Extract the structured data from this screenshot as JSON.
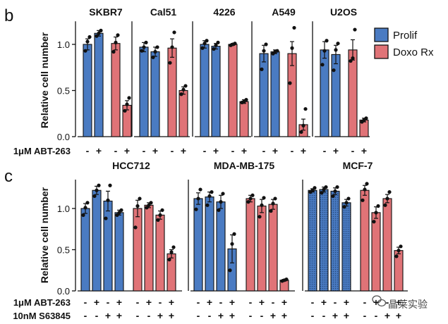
{
  "figure": {
    "colors": {
      "prolif": "#4a7bc2",
      "doxo": "#e07377",
      "err": "#111111",
      "dot": "#111111"
    },
    "watermark": "晶莱实验",
    "legend": [
      {
        "label": "Prolif",
        "color": "#4a7bc2"
      },
      {
        "label": "Doxo Rx",
        "color": "#e07377"
      }
    ]
  },
  "chart_data": [
    {
      "type": "bar",
      "panel": "b",
      "ylabel": "Relative cell number",
      "ylim": [
        0,
        1.25
      ],
      "yticks": [
        "0.0",
        "0.5",
        "1.0"
      ],
      "treatment_rows": [
        {
          "label": "1μM ABT-263",
          "signs": [
            "-",
            "+",
            "-",
            "+"
          ]
        }
      ],
      "groups": [
        {
          "title": "SKBR7",
          "bars": [
            {
              "condition": "Prolif",
              "abt": "-",
              "value": 1.0,
              "err": 0.06,
              "points": [
                0.93,
                1.03,
                1.08
              ]
            },
            {
              "condition": "Prolif",
              "abt": "+",
              "value": 1.12,
              "err": 0.03,
              "points": [
                1.09,
                1.12,
                1.15
              ]
            },
            {
              "condition": "Doxo Rx",
              "abt": "-",
              "value": 1.01,
              "err": 0.07,
              "points": [
                0.92,
                1.02,
                1.1
              ]
            },
            {
              "condition": "Doxo Rx",
              "abt": "+",
              "value": 0.34,
              "err": 0.05,
              "points": [
                0.28,
                0.35,
                0.42
              ]
            }
          ]
        },
        {
          "title": "Cal51",
          "bars": [
            {
              "condition": "Prolif",
              "abt": "-",
              "value": 0.97,
              "err": 0.05,
              "points": [
                0.93,
                0.97,
                1.02
              ]
            },
            {
              "condition": "Prolif",
              "abt": "+",
              "value": 0.92,
              "err": 0.05,
              "points": [
                0.86,
                0.92,
                0.97
              ]
            },
            {
              "condition": "Doxo Rx",
              "abt": "-",
              "value": 0.96,
              "err": 0.1,
              "points": [
                0.8,
                0.97,
                1.13
              ]
            },
            {
              "condition": "Doxo Rx",
              "abt": "+",
              "value": 0.5,
              "err": 0.04,
              "points": [
                0.46,
                0.51,
                0.55
              ]
            }
          ]
        },
        {
          "title": "4226",
          "bars": [
            {
              "condition": "Prolif",
              "abt": "-",
              "value": 1.0,
              "err": 0.04,
              "points": [
                0.96,
                1.01,
                1.04
              ]
            },
            {
              "condition": "Prolif",
              "abt": "+",
              "value": 0.98,
              "err": 0.03,
              "points": [
                0.95,
                0.99,
                1.02
              ]
            },
            {
              "condition": "Doxo Rx",
              "abt": "-",
              "value": 1.0,
              "err": 0.01,
              "points": [
                0.99,
                1.0,
                1.01
              ]
            },
            {
              "condition": "Doxo Rx",
              "abt": "+",
              "value": 0.38,
              "err": 0.02,
              "points": [
                0.37,
                0.38,
                0.4
              ]
            }
          ]
        },
        {
          "title": "A549",
          "bars": [
            {
              "condition": "Prolif",
              "abt": "-",
              "value": 0.9,
              "err": 0.09,
              "points": [
                0.73,
                0.93,
                1.0
              ]
            },
            {
              "condition": "Prolif",
              "abt": "+",
              "value": 0.92,
              "err": 0.02,
              "points": [
                0.9,
                0.92,
                0.93
              ]
            },
            {
              "condition": "Doxo Rx",
              "abt": "-",
              "value": 0.9,
              "err": 0.13,
              "points": [
                0.58,
                0.96,
                1.18
              ]
            },
            {
              "condition": "Doxo Rx",
              "abt": "+",
              "value": 0.13,
              "err": 0.06,
              "points": [
                0.05,
                0.12,
                0.3
              ]
            }
          ]
        },
        {
          "title": "U2OS",
          "bars": [
            {
              "condition": "Prolif",
              "abt": "-",
              "value": 0.94,
              "err": 0.09,
              "points": [
                0.78,
                0.93,
                1.04
              ]
            },
            {
              "condition": "Prolif",
              "abt": "+",
              "value": 0.89,
              "err": 0.1,
              "points": [
                0.72,
                0.94,
                1.01
              ]
            },
            {
              "condition": "Doxo Rx",
              "abt": "-",
              "value": 0.94,
              "err": 0.11,
              "points": [
                0.82,
                0.85,
                1.16
              ]
            },
            {
              "condition": "Doxo Rx",
              "abt": "+",
              "value": 0.18,
              "err": 0.02,
              "points": [
                0.16,
                0.18,
                0.2
              ]
            }
          ]
        }
      ]
    },
    {
      "type": "bar",
      "panel": "c",
      "ylabel": "Relative cell number",
      "ylim": [
        0,
        1.35
      ],
      "yticks": [
        "0.0",
        "0.5",
        "1.0"
      ],
      "treatment_rows": [
        {
          "label": "1μM ABT-263",
          "signs": [
            "-",
            "+",
            "-",
            "+",
            "-",
            "+",
            "-",
            "+"
          ]
        },
        {
          "label": "10nM S63845",
          "signs": [
            "-",
            "-",
            "+",
            "+",
            "-",
            "-",
            "+",
            "+"
          ]
        }
      ],
      "groups": [
        {
          "title": "HCC712",
          "bars": [
            {
              "condition": "Prolif",
              "value": 1.0,
              "err": 0.06,
              "points": [
                0.92,
                1.01,
                1.07
              ]
            },
            {
              "condition": "Prolif",
              "value": 1.22,
              "err": 0.05,
              "points": [
                1.15,
                1.22,
                1.28
              ]
            },
            {
              "condition": "Prolif",
              "value": 1.09,
              "err": 0.12,
              "points": [
                0.88,
                1.1,
                1.28
              ]
            },
            {
              "condition": "Prolif",
              "value": 0.95,
              "err": 0.03,
              "points": [
                0.92,
                0.95,
                0.98
              ]
            },
            {
              "condition": "Doxo Rx",
              "value": 1.0,
              "err": 0.1,
              "points": [
                0.77,
                1.03,
                1.12
              ]
            },
            {
              "condition": "Doxo Rx",
              "value": 1.04,
              "err": 0.03,
              "points": [
                1.01,
                1.04,
                1.07
              ]
            },
            {
              "condition": "Doxo Rx",
              "value": 0.92,
              "err": 0.05,
              "points": [
                0.86,
                0.92,
                0.98
              ]
            },
            {
              "condition": "Doxo Rx",
              "value": 0.45,
              "err": 0.05,
              "points": [
                0.38,
                0.47,
                0.53
              ]
            }
          ]
        },
        {
          "title": "MDA-MB-175",
          "bars": [
            {
              "condition": "Prolif",
              "value": 1.12,
              "err": 0.07,
              "points": [
                0.99,
                1.12,
                1.23
              ]
            },
            {
              "condition": "Prolif",
              "value": 1.14,
              "err": 0.06,
              "points": [
                1.04,
                1.15,
                1.2
              ]
            },
            {
              "condition": "Prolif",
              "value": 1.08,
              "err": 0.08,
              "points": [
                0.98,
                1.08,
                1.18
              ]
            },
            {
              "condition": "Prolif",
              "value": 0.51,
              "err": 0.17,
              "points": [
                0.25,
                0.57,
                0.69
              ]
            },
            {
              "condition": "Doxo Rx",
              "value": 1.12,
              "err": 0.04,
              "points": [
                1.08,
                1.12,
                1.16
              ]
            },
            {
              "condition": "Doxo Rx",
              "value": 1.03,
              "err": 0.08,
              "points": [
                0.9,
                1.04,
                1.13
              ]
            },
            {
              "condition": "Doxo Rx",
              "value": 1.05,
              "err": 0.06,
              "points": [
                0.97,
                1.06,
                1.12
              ]
            },
            {
              "condition": "Doxo Rx",
              "value": 0.13,
              "err": 0.01,
              "points": [
                0.12,
                0.13,
                0.14
              ]
            }
          ]
        },
        {
          "title": "MCF-7",
          "bars": [
            {
              "condition": "Prolif",
              "value": 1.22,
              "err": 0.02,
              "points": [
                1.2,
                1.22,
                1.25
              ]
            },
            {
              "condition": "Prolif",
              "value": 1.23,
              "err": 0.03,
              "points": [
                1.19,
                1.23,
                1.26
              ]
            },
            {
              "condition": "Prolif",
              "value": 1.21,
              "err": 0.04,
              "points": [
                1.15,
                1.21,
                1.26
              ]
            },
            {
              "condition": "Prolif",
              "value": 1.07,
              "err": 0.04,
              "points": [
                1.02,
                1.07,
                1.12
              ]
            },
            {
              "condition": "Doxo Rx",
              "value": 1.22,
              "err": 0.06,
              "points": [
                1.1,
                1.23,
                1.3
              ]
            },
            {
              "condition": "Doxo Rx",
              "value": 0.95,
              "err": 0.07,
              "points": [
                0.84,
                0.95,
                1.03
              ]
            },
            {
              "condition": "Doxo Rx",
              "value": 1.12,
              "err": 0.05,
              "points": [
                1.04,
                1.12,
                1.2
              ]
            },
            {
              "condition": "Doxo Rx",
              "value": 0.49,
              "err": 0.04,
              "points": [
                0.42,
                0.49,
                0.54
              ]
            }
          ]
        }
      ]
    }
  ]
}
